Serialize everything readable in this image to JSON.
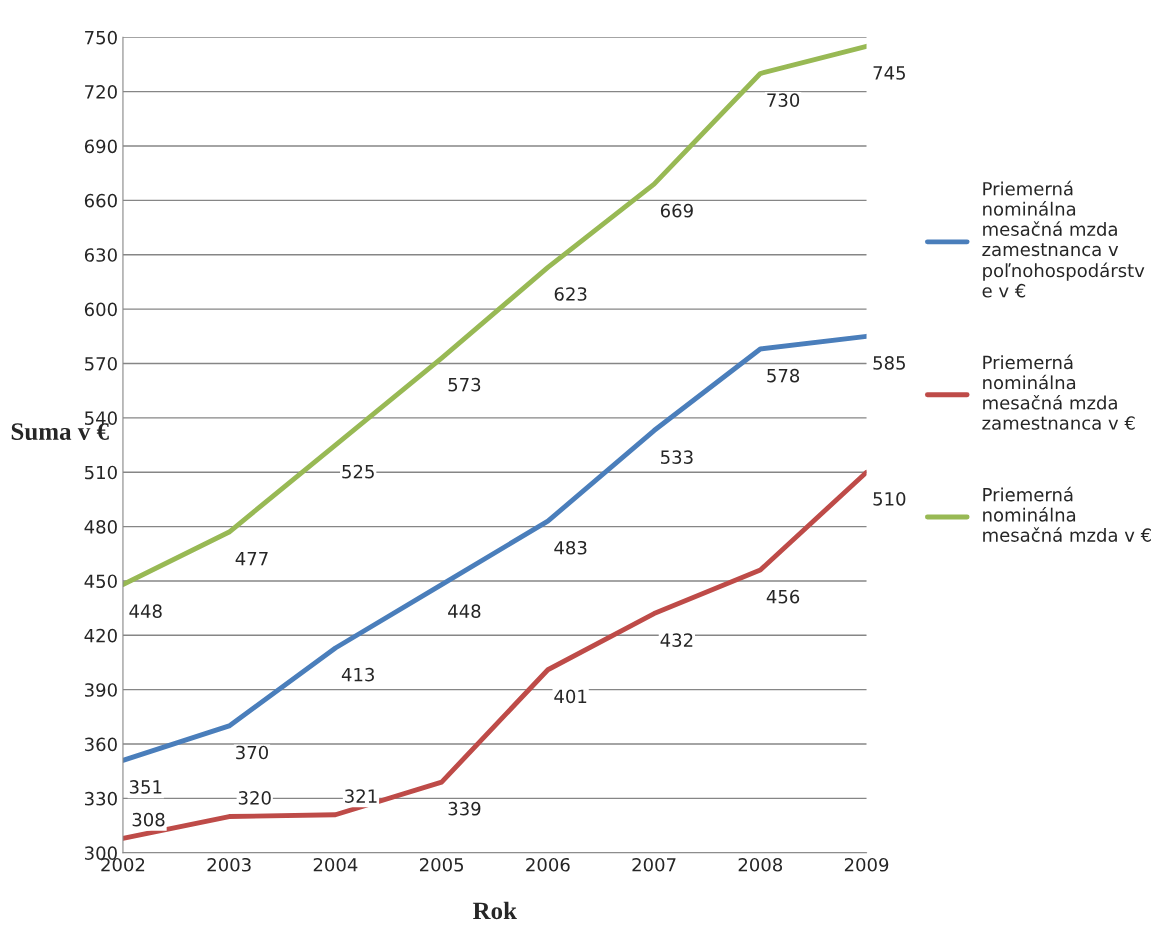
{
  "chart_data": {
    "type": "line",
    "xlabel": "Rok",
    "ylabel": "Suma v €",
    "categories": [
      "2002",
      "2003",
      "2004",
      "2005",
      "2006",
      "2007",
      "2008",
      "2009"
    ],
    "series": [
      {
        "name": "Priemerná\nnominálna\nmesačná mzda\nzamestnanca v\npoľnohospodárstv\ne v €",
        "color": "#4a7ebb",
        "values": [
          351,
          370,
          413,
          448,
          483,
          533,
          578,
          585
        ]
      },
      {
        "name": "Priemerná\nnominálna\nmesačná mzda\nzamestnanca v €",
        "color": "#be4b48",
        "values": [
          308,
          320,
          321,
          339,
          401,
          432,
          456,
          510
        ]
      },
      {
        "name": "Priemerná\nnominálna\nmesačná mzda v €",
        "color": "#98b954",
        "values": [
          448,
          477,
          525,
          573,
          623,
          669,
          730,
          745
        ]
      }
    ],
    "ylim": [
      300,
      750
    ],
    "yticks": [
      300,
      330,
      360,
      390,
      420,
      450,
      480,
      510,
      540,
      570,
      600,
      630,
      660,
      690,
      720,
      750
    ],
    "grid": "y",
    "legend": "right",
    "data_labels": true,
    "marker": "none",
    "line_style": "solid"
  }
}
